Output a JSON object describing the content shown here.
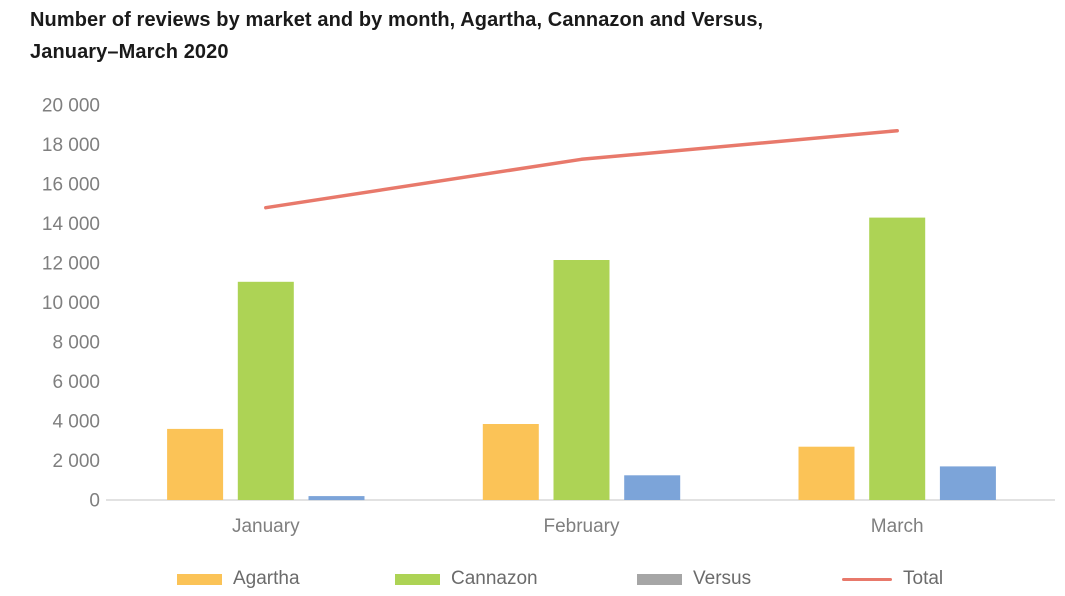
{
  "header": {
    "title_line1": "Number of reviews by market and by month, Agartha, Cannazon and Versus,",
    "title_line2": "January–March 2020"
  },
  "chart_data": {
    "type": "bar",
    "subtype": "grouped-bars-with-total-line",
    "title": "Number of reviews by market and by month, Agartha, Cannazon and Versus, January–March 2020",
    "categories": [
      "January",
      "February",
      "March"
    ],
    "series": [
      {
        "name": "Agartha",
        "type": "bar",
        "color": "#FBC357",
        "values": [
          3600,
          3850,
          2700
        ]
      },
      {
        "name": "Cannazon",
        "type": "bar",
        "color": "#ADD355",
        "values": [
          11050,
          12150,
          14300
        ]
      },
      {
        "name": "Versus",
        "type": "bar",
        "color": "#7CA4D9",
        "legend_color": "#A6A6A6",
        "values": [
          200,
          1250,
          1700
        ]
      },
      {
        "name": "Total",
        "type": "line",
        "color": "#E8796B",
        "values": [
          14800,
          17250,
          18700
        ]
      }
    ],
    "xlabel": "",
    "ylabel": "",
    "ylim": [
      0,
      20000
    ],
    "ytick_step": 2000,
    "ytick_labels": [
      "0",
      "2 000",
      "4 000",
      "6 000",
      "8 000",
      "10 000",
      "12 000",
      "14 000",
      "16 000",
      "18 000",
      "20 000"
    ],
    "grid": false,
    "legend_position": "bottom",
    "axis_color": "#D9D9D9",
    "text_color": "#7F7F7F"
  }
}
